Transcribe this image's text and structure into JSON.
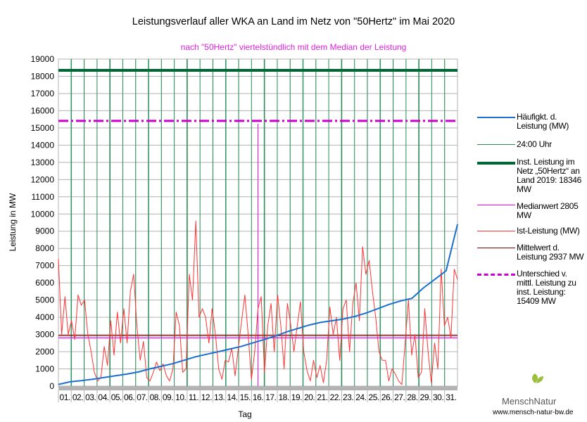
{
  "chart_data": {
    "type": "line",
    "title": "Leistungsverlauf aller WKA an Land im Netz von \"50Hertz\" im Mai 2020",
    "subtitle": "nach \"50Hertz\" viertelstündlich mit dem Median der Leistung",
    "xlabel": "Tag",
    "ylabel": "Leistung in MW",
    "ylim": [
      0,
      19000
    ],
    "yticks": [
      "0",
      "1000",
      "2000",
      "3000",
      "4000",
      "5000",
      "6000",
      "7000",
      "8000",
      "9000",
      "10000",
      "11000",
      "12000",
      "13000",
      "14000",
      "15000",
      "16000",
      "17000",
      "18000",
      "19000"
    ],
    "days": [
      "01.",
      "02.",
      "03.",
      "04.",
      "05.",
      "06.",
      "07.",
      "08.",
      "09.",
      "10.",
      "11.",
      "12.",
      "13.",
      "14.",
      "15.",
      "16.",
      "17.",
      "18.",
      "19.",
      "20.",
      "21.",
      "22.",
      "23.",
      "24.",
      "25.",
      "26.",
      "27.",
      "28.",
      "29.",
      "30.",
      "31."
    ],
    "ist_leistung": [
      7400,
      3000,
      5200,
      3000,
      3800,
      2700,
      5300,
      4700,
      5000,
      3000,
      2000,
      800,
      300,
      500,
      2300,
      1200,
      3800,
      1800,
      4300,
      2500,
      4500,
      2500,
      5500,
      6500,
      3500,
      1500,
      2600,
      500,
      300,
      800,
      1400,
      900,
      1300,
      600,
      300,
      1000,
      4300,
      3500,
      800,
      1000,
      6500,
      5000,
      9600,
      4000,
      4500,
      4000,
      2500,
      4500,
      3000,
      1000,
      400,
      1500,
      1400,
      2200,
      600,
      2200,
      3800,
      5300,
      3000,
      400,
      2000,
      4500,
      5200,
      800,
      3500,
      4800,
      2000,
      5300,
      3500,
      1000,
      4800,
      3600,
      2000,
      3500,
      4900,
      2000,
      900,
      300,
      1500,
      500,
      1200,
      200,
      1500,
      4600,
      3000,
      4000,
      1500,
      4500,
      5000,
      2000,
      4800,
      6000,
      3800,
      8100,
      6500,
      7300,
      5500,
      4000,
      2000,
      1500,
      1500,
      300,
      1000,
      700,
      300,
      100,
      2500,
      5000,
      1800,
      3000,
      500,
      800,
      4500,
      2000,
      200,
      2500,
      1000,
      6800,
      3500,
      4000,
      2800,
      6800,
      6200
    ],
    "haeufigkeit": [
      100,
      250,
      320,
      400,
      500,
      600,
      700,
      820,
      1000,
      1150,
      1300,
      1500,
      1700,
      1850,
      2000,
      2150,
      2300,
      2500,
      2700,
      2900,
      3150,
      3350,
      3550,
      3700,
      3800,
      3900,
      4050,
      4250,
      4500,
      4750,
      4950,
      5100,
      5700,
      6200,
      6700,
      9400
    ],
    "reference_lines": [
      {
        "name": "Inst. Leistung im Netz „50Hertz“ an Land 2019: 18346 MW",
        "value": 18346,
        "color": "#006633"
      },
      {
        "name": "Unterschied v. mittl. Leistung zu inst. Leistung: 15409 MW",
        "value": 15409,
        "color": "#cc00cc"
      },
      {
        "name": "Mittelwert d. Leistung 2937 MW",
        "value": 2937,
        "color": "#800000"
      },
      {
        "name": "Medianwert 2805 MW",
        "value": 2805,
        "color": "#ff00ff"
      }
    ],
    "legend": [
      {
        "label": "Häufigkt. d. Leistung (MW)",
        "color": "#1a6fcf"
      },
      {
        "label": "24:00 Uhr",
        "color": "#2e8b57"
      },
      {
        "label": "Inst. Leistung im Netz „50Hertz“ an Land 2019: 18346 MW",
        "color": "#006633"
      },
      {
        "label": "Medianwert 2805 MW",
        "color": "#ff00ff"
      },
      {
        "label": "Ist-Leistung (MW)",
        "color": "#ff3333"
      },
      {
        "label": "Mittelwert d. Leistung 2937 MW",
        "color": "#800000"
      },
      {
        "label": "Unterschied v. mittl. Leistung zu inst. Leistung: 15409 MW",
        "color": "#cc00cc"
      }
    ],
    "legend_position": "right"
  },
  "logo": {
    "name": "MenschNatur",
    "url": "www.mensch-natur-bw.de"
  }
}
